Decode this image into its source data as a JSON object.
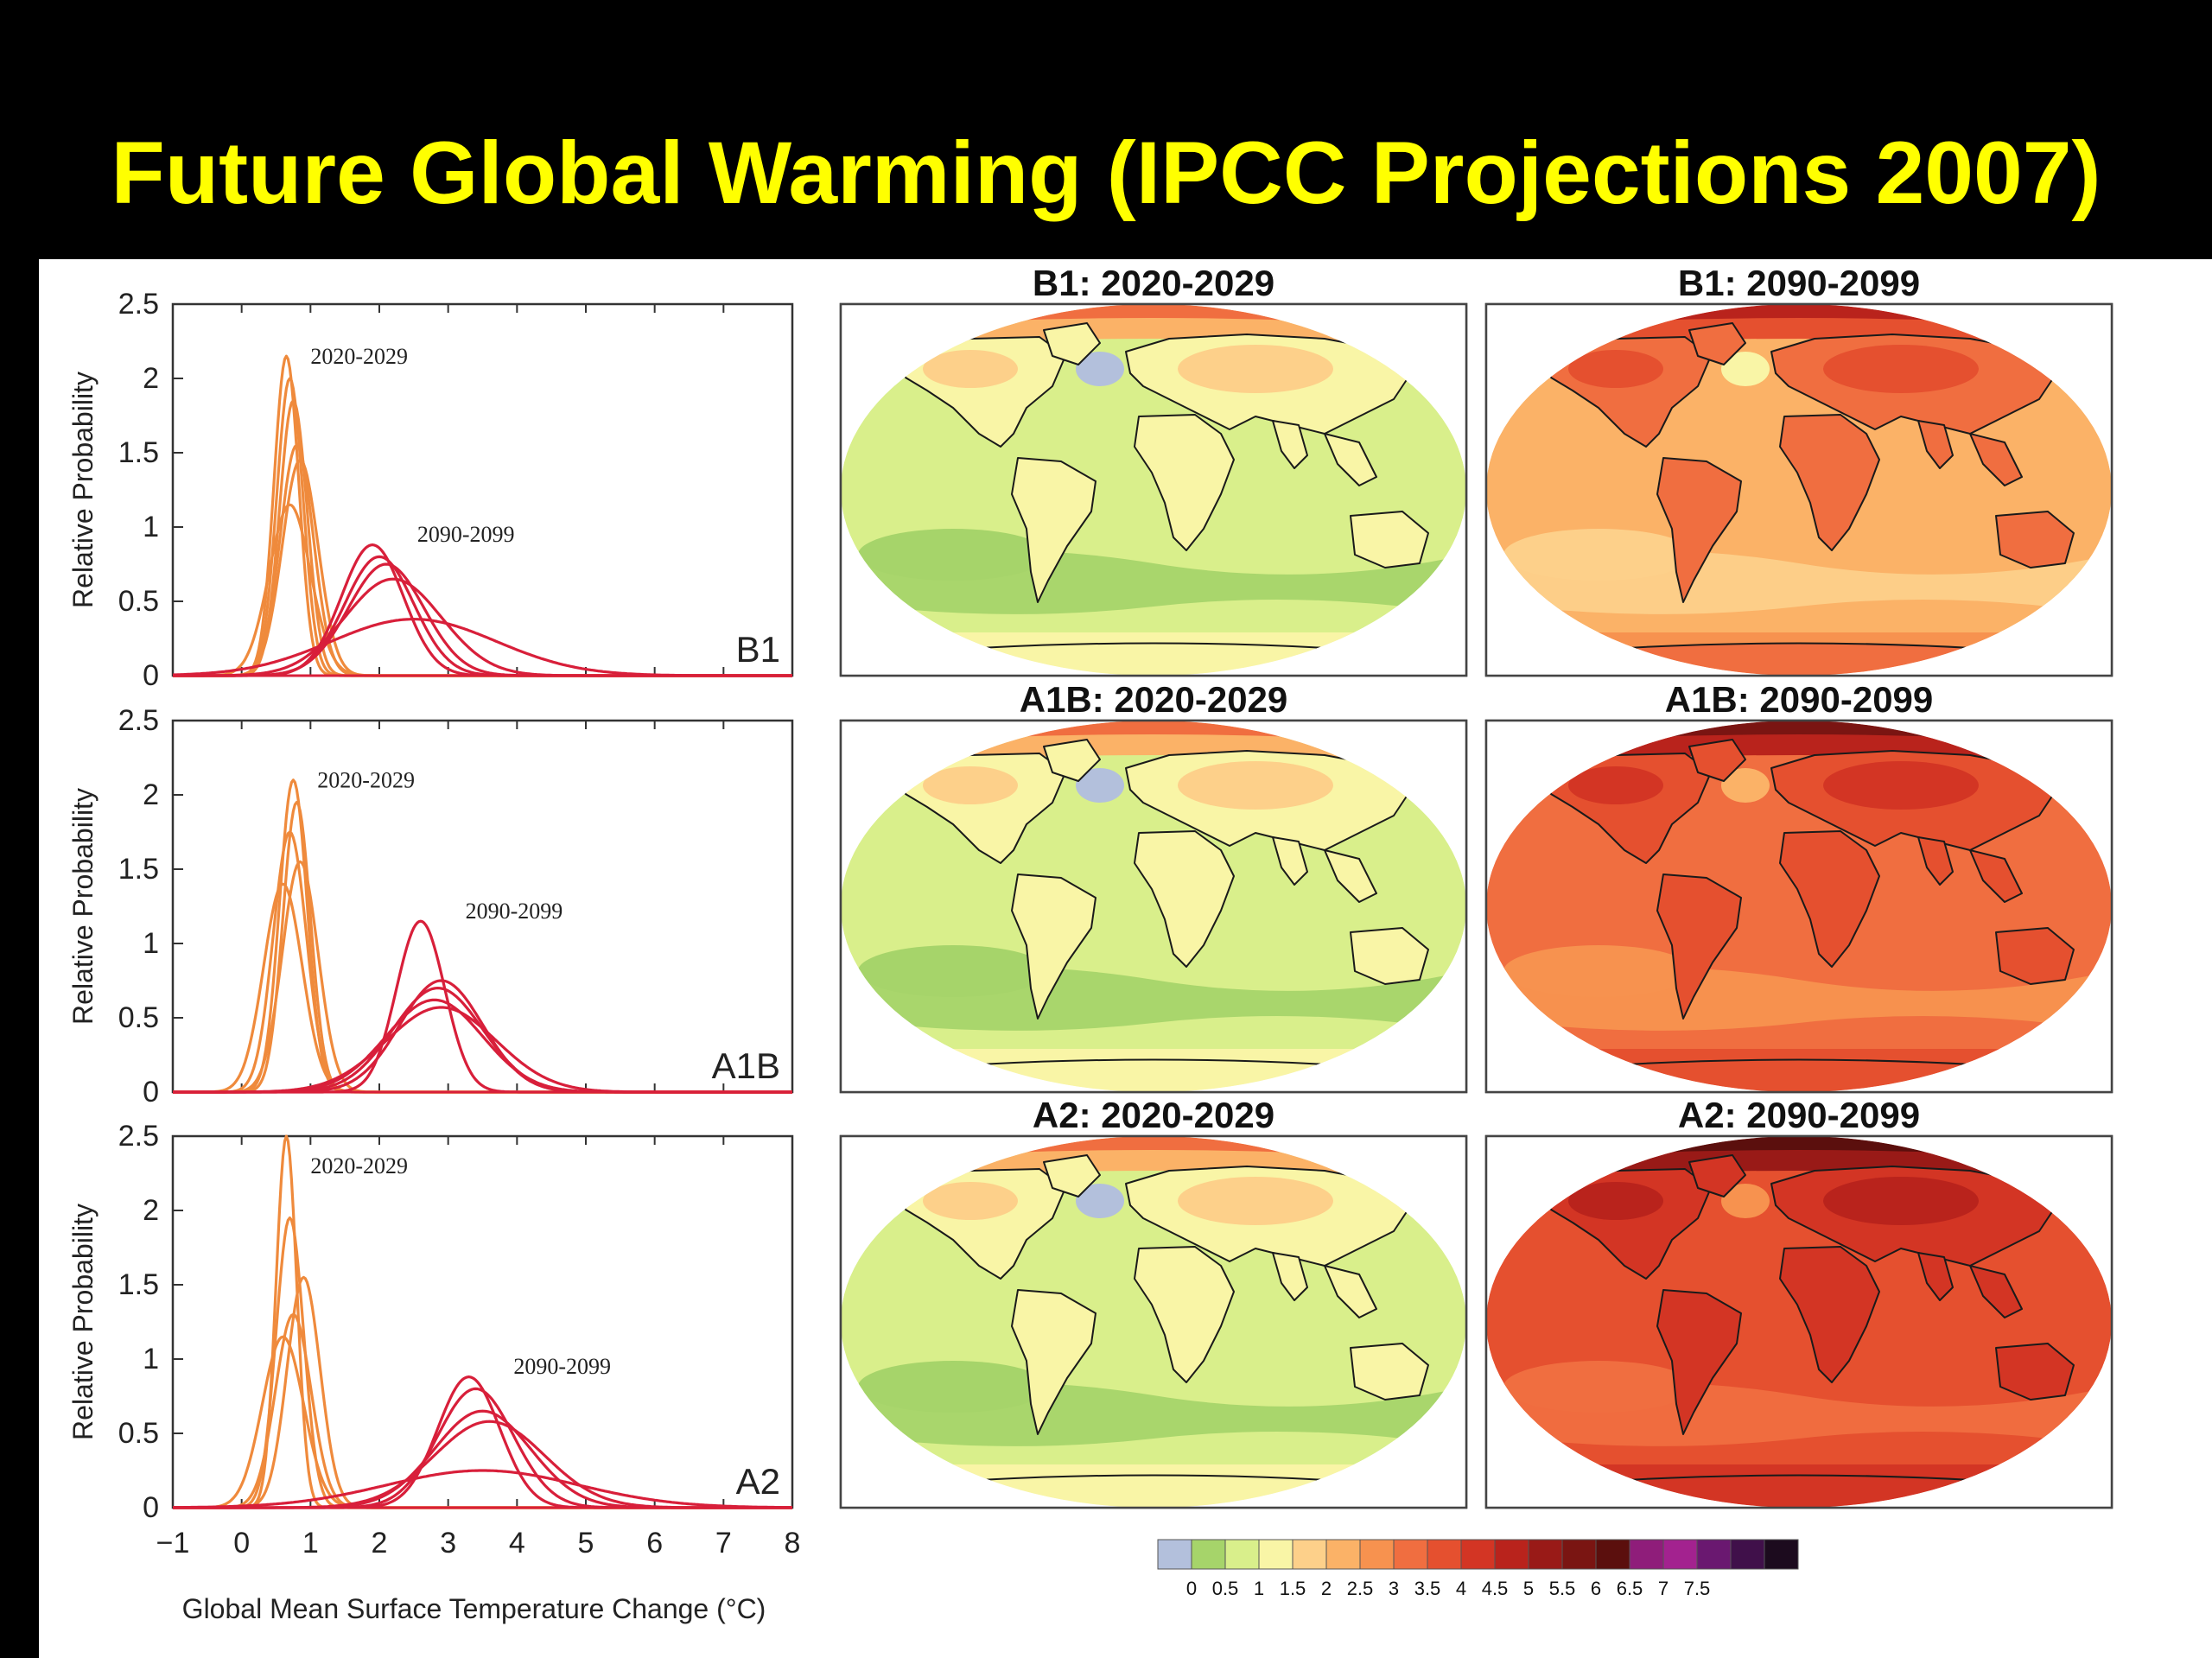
{
  "slide": {
    "title": "Future Global Warming (IPCC Projections 2007)"
  },
  "colors": {
    "near_term": "#ef8a3c",
    "long_term": "#d81f3a",
    "colorbar": [
      "#b3c0dc",
      "#a6d46a",
      "#d9ef8b",
      "#f9f5a6",
      "#fdd08a",
      "#fbb267",
      "#f7924f",
      "#f06e40",
      "#e5502f",
      "#d33524",
      "#b9231c",
      "#991a17",
      "#7a1512",
      "#5b0f0d",
      "#8f1d7a",
      "#a3228f",
      "#6a1870",
      "#40104a",
      "#1c0b1e"
    ]
  },
  "chart_data": [
    {
      "type": "line",
      "panel": "B1",
      "xlabel": "",
      "ylabel": "Relative Probability",
      "xlim": [
        -1,
        8
      ],
      "ylim": [
        0,
        2.5
      ],
      "yticks": [
        "0",
        "0.5",
        "1",
        "1.5",
        "2",
        "2.5"
      ],
      "annotations": [
        "2020-2029",
        "2090-2099"
      ],
      "series": [
        {
          "group": "2020-2029",
          "peaks": [
            [
              0.65,
              2.15,
              0.18
            ],
            [
              0.7,
              2.0,
              0.19
            ],
            [
              0.75,
              1.85,
              0.2
            ],
            [
              0.8,
              1.55,
              0.24
            ],
            [
              0.85,
              1.45,
              0.26
            ],
            [
              0.7,
              1.15,
              0.3
            ]
          ]
        },
        {
          "group": "2090-2099",
          "peaks": [
            [
              1.9,
              0.88,
              0.45
            ],
            [
              2.0,
              0.8,
              0.5
            ],
            [
              2.1,
              0.75,
              0.55
            ],
            [
              2.2,
              0.65,
              0.7
            ],
            [
              2.5,
              0.38,
              1.2
            ]
          ]
        }
      ]
    },
    {
      "type": "line",
      "panel": "A1B",
      "xlabel": "",
      "ylabel": "Relative Probability",
      "xlim": [
        -1,
        8
      ],
      "ylim": [
        0,
        2.5
      ],
      "yticks": [
        "0",
        "0.5",
        "1",
        "1.5",
        "2",
        "2.5"
      ],
      "annotations": [
        "2020-2029",
        "2090-2099"
      ],
      "series": [
        {
          "group": "2020-2029",
          "peaks": [
            [
              0.75,
              2.1,
              0.2
            ],
            [
              0.8,
              1.95,
              0.2
            ],
            [
              0.7,
              1.75,
              0.24
            ],
            [
              0.85,
              1.55,
              0.26
            ],
            [
              0.6,
              1.4,
              0.28
            ]
          ]
        },
        {
          "group": "2090-2099",
          "peaks": [
            [
              2.6,
              1.15,
              0.35
            ],
            [
              2.9,
              0.75,
              0.6
            ],
            [
              2.85,
              0.7,
              0.65
            ],
            [
              2.8,
              0.62,
              0.7
            ],
            [
              2.9,
              0.57,
              0.8
            ]
          ]
        }
      ]
    },
    {
      "type": "line",
      "panel": "A2",
      "xlabel": "Global Mean Surface Temperature Change (°C)",
      "ylabel": "Relative Probability",
      "xlim": [
        -1,
        8
      ],
      "ylim": [
        0,
        2.5
      ],
      "xticks": [
        "−1",
        "0",
        "1",
        "2",
        "3",
        "4",
        "5",
        "6",
        "7",
        "8"
      ],
      "yticks": [
        "0",
        "0.5",
        "1",
        "1.5",
        "2",
        "2.5"
      ],
      "annotations": [
        "2020-2029",
        "2090-2099"
      ],
      "series": [
        {
          "group": "2020-2029",
          "peaks": [
            [
              0.65,
              2.5,
              0.15
            ],
            [
              0.7,
              1.95,
              0.2
            ],
            [
              0.9,
              1.55,
              0.24
            ],
            [
              0.75,
              1.3,
              0.26
            ],
            [
              0.6,
              1.15,
              0.3
            ]
          ]
        },
        {
          "group": "2090-2099",
          "peaks": [
            [
              3.3,
              0.88,
              0.45
            ],
            [
              3.4,
              0.8,
              0.55
            ],
            [
              3.5,
              0.65,
              0.7
            ],
            [
              3.6,
              0.58,
              0.8
            ],
            [
              3.5,
              0.25,
              1.4
            ]
          ]
        }
      ]
    }
  ],
  "maps": [
    {
      "title": "B1: 2020-2029",
      "level": 0.5
    },
    {
      "title": "B1: 2090-2099",
      "level": 2.3
    },
    {
      "title": "A1B: 2020-2029",
      "level": 0.5
    },
    {
      "title": "A1B: 2090-2099",
      "level": 3.0
    },
    {
      "title": "A2: 2020-2029",
      "level": 0.5
    },
    {
      "title": "A2: 2090-2099",
      "level": 3.6
    }
  ],
  "colorbar": {
    "labels": [
      "0",
      "0.5",
      "1",
      "1.5",
      "2",
      "2.5",
      "3",
      "3.5",
      "4",
      "4.5",
      "5",
      "5.5",
      "6",
      "6.5",
      "7",
      "7.5"
    ]
  }
}
